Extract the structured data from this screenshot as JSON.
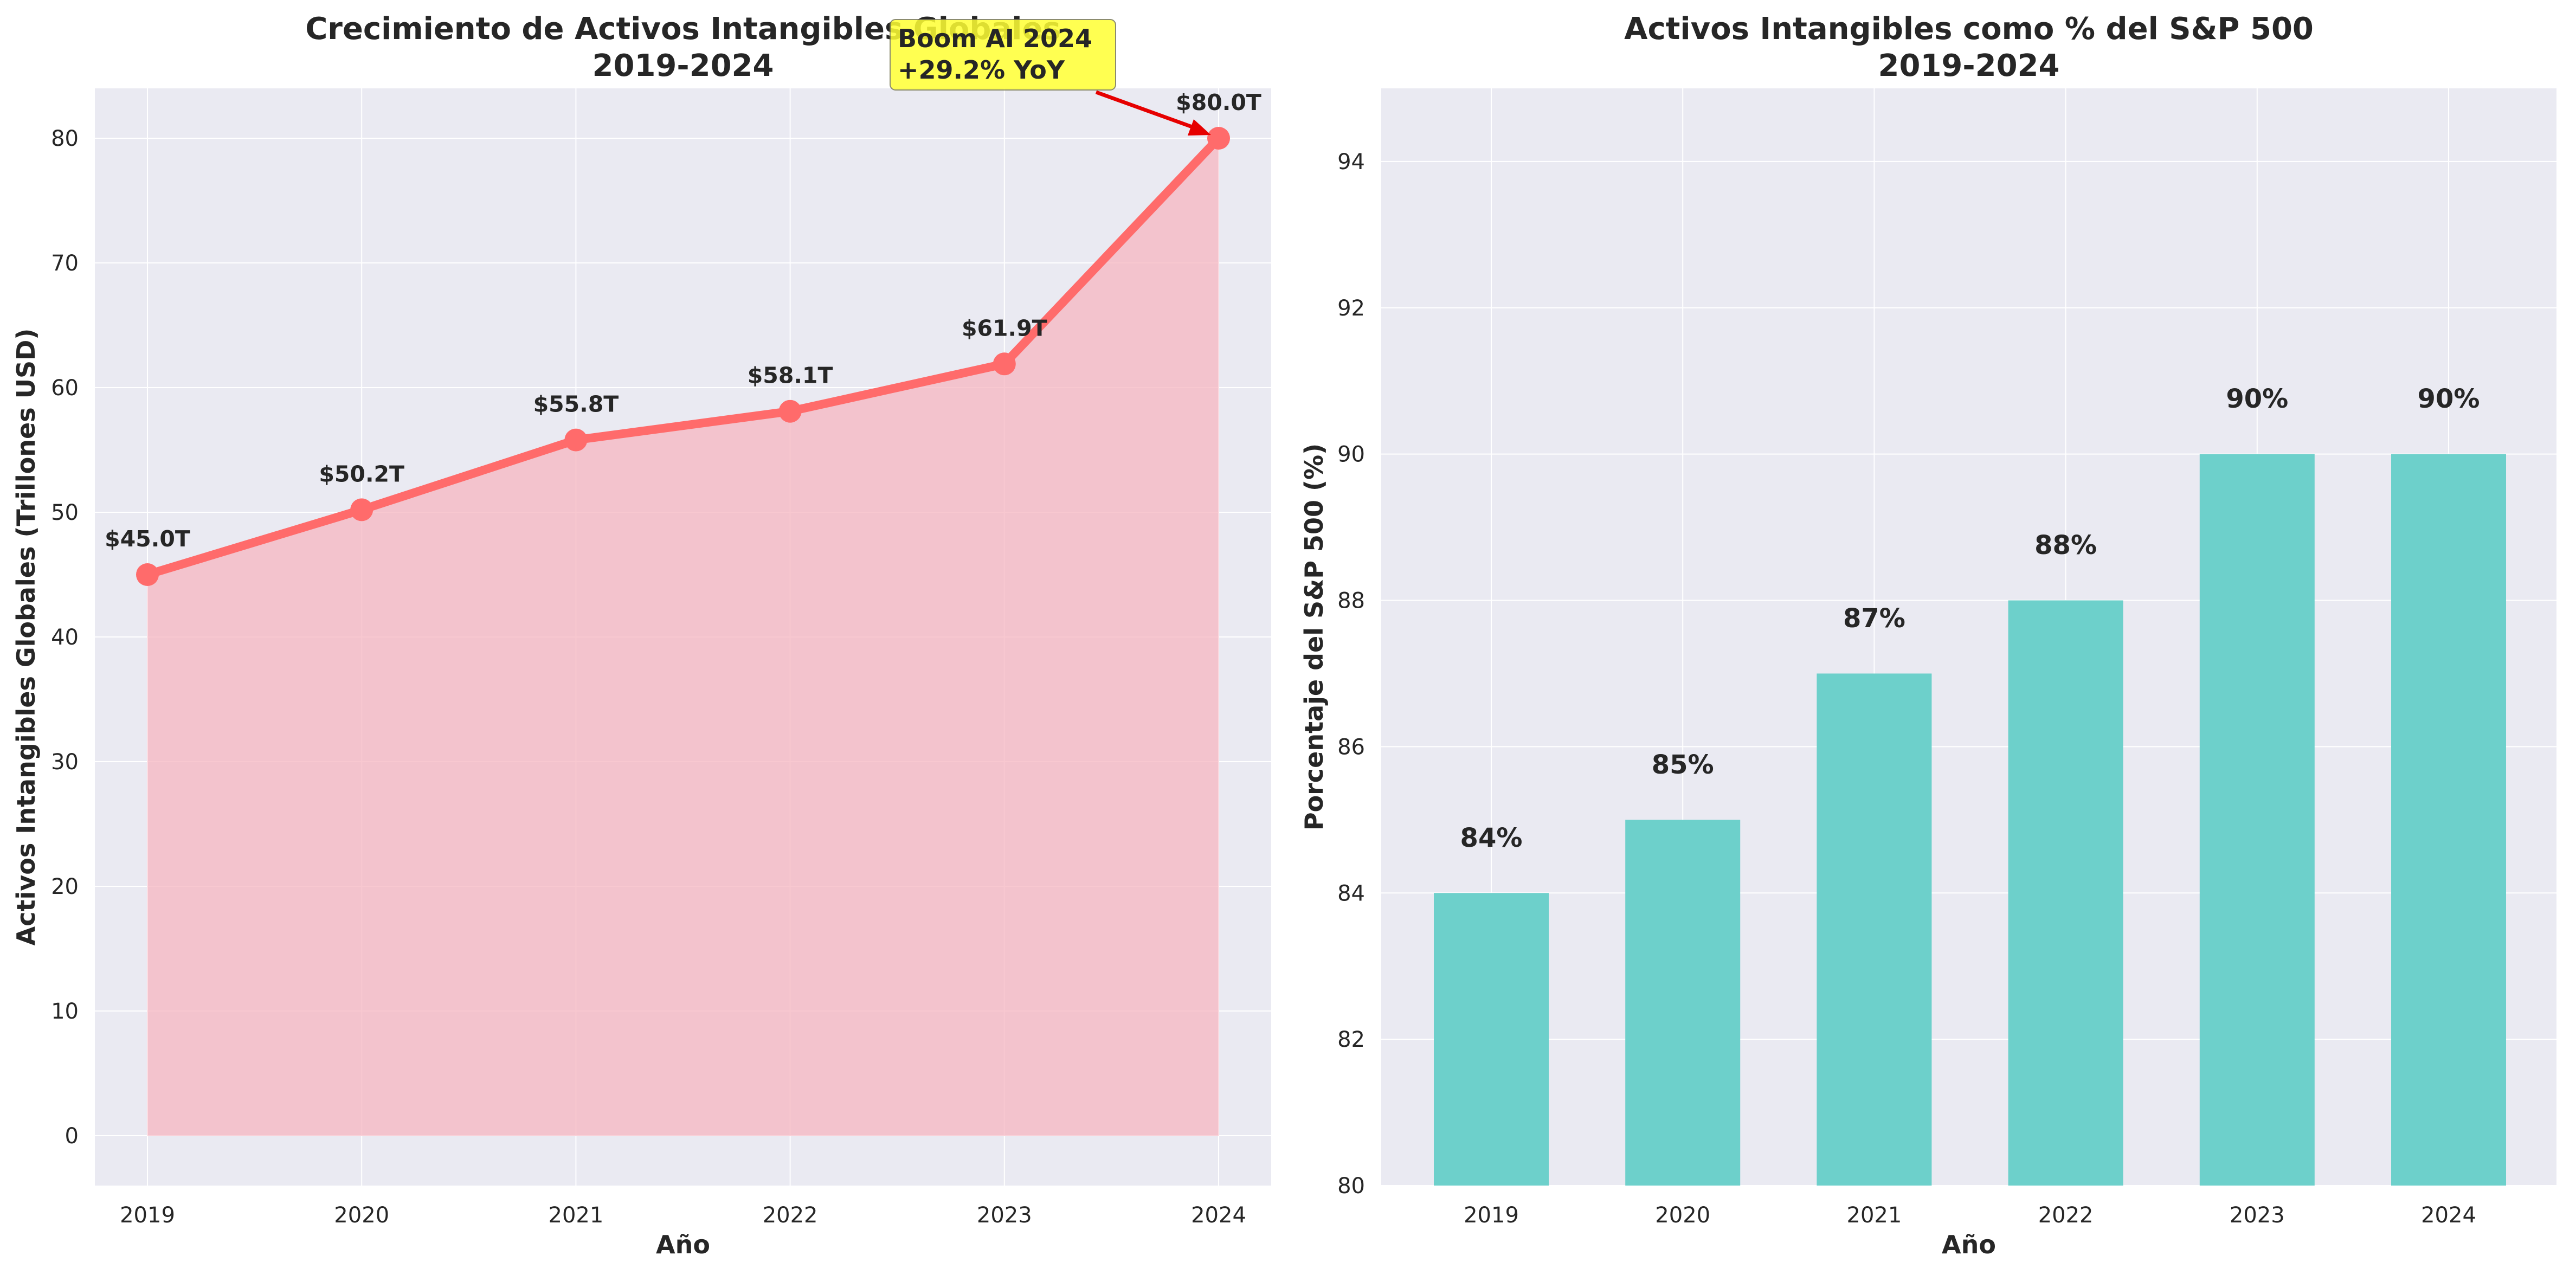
{
  "chart_data": [
    {
      "type": "area",
      "title": "Crecimiento de Activos Intangibles Globales\n2019-2024",
      "xlabel": "Año",
      "ylabel": "Activos Intangibles Globales (Trillones USD)",
      "categories": [
        "2019",
        "2020",
        "2021",
        "2022",
        "2023",
        "2024"
      ],
      "values": [
        45.0,
        50.2,
        55.8,
        58.1,
        61.9,
        80.0
      ],
      "data_labels": [
        "$45.0T",
        "$50.2T",
        "$55.8T",
        "$58.1T",
        "$61.9T",
        "$80.0T"
      ],
      "ylim": [
        -4,
        84
      ],
      "yticks": [
        0,
        10,
        20,
        30,
        40,
        50,
        60,
        70,
        80
      ],
      "grid": true,
      "colors": {
        "line": "#ff6b6b",
        "fill": "#f5b5c0",
        "background": "#eaeaf2",
        "arrow": "#e60000",
        "annotation_box": "#ffff33"
      },
      "annotation": {
        "text": "Boom AI 2024\n+29.2% YoY",
        "target_category": "2024",
        "target_value": 80.0
      }
    },
    {
      "type": "bar",
      "title": "Activos Intangibles como % del S&P 500\n2019-2024",
      "xlabel": "Año",
      "ylabel": "Porcentaje del S&P 500 (%)",
      "categories": [
        "2019",
        "2020",
        "2021",
        "2022",
        "2023",
        "2024"
      ],
      "values": [
        84,
        85,
        87,
        88,
        90,
        90
      ],
      "data_labels": [
        "84%",
        "85%",
        "87%",
        "88%",
        "90%",
        "90%"
      ],
      "ylim": [
        80,
        95
      ],
      "yticks": [
        80,
        82,
        84,
        86,
        88,
        90,
        92,
        94
      ],
      "grid": true,
      "colors": {
        "bar": "#6dd0cb",
        "background": "#eaeaf2"
      }
    }
  ]
}
